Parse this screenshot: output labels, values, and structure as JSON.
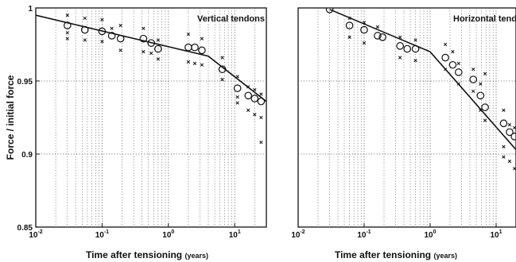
{
  "chart_data": [
    {
      "type": "scatter",
      "title": "Vertical tendons",
      "ylabel": "Force / initial force",
      "xlabel": "Time after tensioning",
      "xlabel_unit": "(years)",
      "xscale": "log",
      "xlim": [
        0.01,
        30
      ],
      "ylim": [
        0.85,
        1.0
      ],
      "grid": true,
      "x_ticks": [
        {
          "value": 0.01,
          "base": "10",
          "exp": "-2"
        },
        {
          "value": 0.1,
          "base": "10",
          "exp": "-1"
        },
        {
          "value": 1,
          "base": "10",
          "exp": "0"
        },
        {
          "value": 10,
          "base": "10",
          "exp": "1"
        }
      ],
      "y_ticks": [
        {
          "value": 0.85,
          "label": "0.85"
        },
        {
          "value": 0.9,
          "label": "0.9"
        },
        {
          "value": 0.95,
          "label": "0.95"
        },
        {
          "value": 1.0,
          "label": "1"
        }
      ],
      "series": [
        {
          "marker": "circle",
          "x": [
            0.03,
            0.055,
            0.1,
            0.14,
            0.19,
            0.42,
            0.55,
            0.7,
            2.0,
            2.5,
            3.2,
            6.5,
            11,
            16,
            20,
            25
          ],
          "y": [
            0.988,
            0.985,
            0.984,
            0.981,
            0.979,
            0.979,
            0.976,
            0.972,
            0.973,
            0.973,
            0.971,
            0.958,
            0.945,
            0.94,
            0.938,
            0.936
          ]
        },
        {
          "marker": "x",
          "x": [
            0.03,
            0.03,
            0.03,
            0.055,
            0.055,
            0.1,
            0.1,
            0.14,
            0.19,
            0.19,
            0.42,
            0.42,
            0.55,
            0.7,
            0.7,
            2.0,
            2.0,
            2.5,
            3.2,
            3.2,
            6.5,
            6.5,
            11,
            11,
            11,
            16,
            16,
            20,
            20,
            25,
            25,
            25
          ],
          "y": [
            0.995,
            0.983,
            0.979,
            0.993,
            0.978,
            0.992,
            0.977,
            0.986,
            0.988,
            0.971,
            0.986,
            0.97,
            0.969,
            0.978,
            0.965,
            0.982,
            0.963,
            0.962,
            0.979,
            0.961,
            0.966,
            0.951,
            0.953,
            0.939,
            0.935,
            0.946,
            0.93,
            0.944,
            0.927,
            0.941,
            0.925,
            0.908
          ]
        },
        {
          "marker": "line",
          "x": [
            0.01,
            4.0,
            30
          ],
          "y": [
            0.995,
            0.967,
            0.936
          ]
        }
      ]
    },
    {
      "type": "scatter",
      "title": "Horizontal tendons",
      "xlabel": "Time after tensioning",
      "xlabel_unit": "(years)",
      "xscale": "log",
      "xlim": [
        0.01,
        20
      ],
      "ylim": [
        0.85,
        1.0
      ],
      "grid": true,
      "x_ticks": [
        {
          "value": 0.01,
          "base": "10",
          "exp": "-2"
        },
        {
          "value": 0.1,
          "base": "10",
          "exp": "-1"
        },
        {
          "value": 1,
          "base": "10",
          "exp": "0"
        },
        {
          "value": 10,
          "base": "10",
          "exp": "1"
        }
      ],
      "series": [
        {
          "marker": "circle",
          "x": [
            0.03,
            0.06,
            0.1,
            0.16,
            0.19,
            0.35,
            0.45,
            0.6,
            1.7,
            2.2,
            2.7,
            4.5,
            5.8,
            6.8,
            13,
            16,
            19
          ],
          "y": [
            0.999,
            0.988,
            0.985,
            0.981,
            0.98,
            0.974,
            0.972,
            0.972,
            0.966,
            0.961,
            0.956,
            0.951,
            0.94,
            0.932,
            0.921,
            0.915,
            0.912
          ]
        },
        {
          "marker": "x",
          "x": [
            0.06,
            0.06,
            0.1,
            0.1,
            0.16,
            0.35,
            0.35,
            0.6,
            0.6,
            1.7,
            1.7,
            2.2,
            2.7,
            2.7,
            4.5,
            4.5,
            5.8,
            5.8,
            6.8,
            6.8,
            13,
            13,
            13,
            16,
            16,
            19,
            19
          ],
          "y": [
            0.993,
            0.98,
            0.99,
            0.976,
            0.987,
            0.98,
            0.966,
            0.978,
            0.964,
            0.975,
            0.958,
            0.97,
            0.962,
            0.948,
            0.958,
            0.943,
            0.948,
            0.93,
            0.955,
            0.923,
            0.93,
            0.905,
            0.898,
            0.92,
            0.895,
            0.918,
            0.89
          ]
        },
        {
          "marker": "line",
          "x": [
            0.03,
            1.0,
            20
          ],
          "y": [
            0.999,
            0.97,
            0.903
          ]
        }
      ]
    }
  ]
}
